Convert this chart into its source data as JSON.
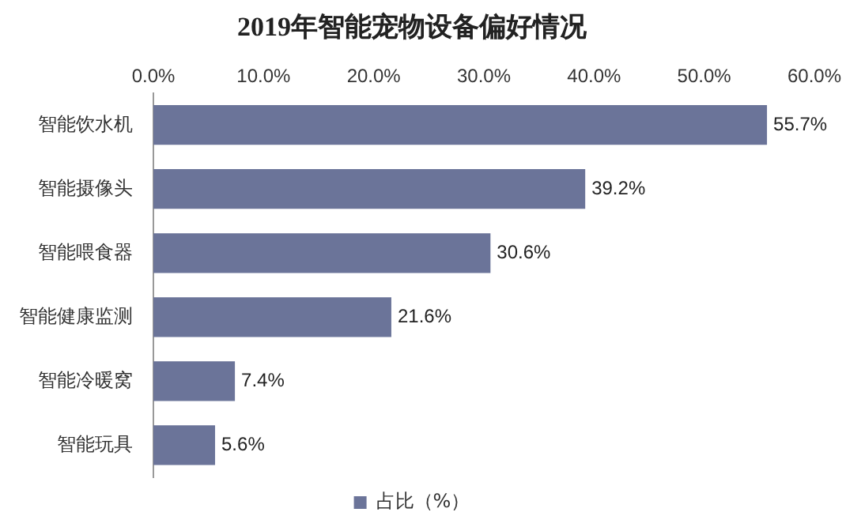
{
  "chart_data": {
    "type": "bar",
    "orientation": "horizontal",
    "title": "2019年智能宠物设备偏好情况",
    "categories": [
      "智能饮水机",
      "智能摄像头",
      "智能喂食器",
      "智能健康监测",
      "智能冷暖窝",
      "智能玩具"
    ],
    "series": [
      {
        "name": "占比（%）",
        "color": "#6b7499",
        "values": [
          55.7,
          39.2,
          30.6,
          21.6,
          7.4,
          5.6
        ],
        "value_labels": [
          "55.7%",
          "39.2%",
          "30.6%",
          "21.6%",
          "7.4%",
          "5.6%"
        ]
      }
    ],
    "xlim": [
      0,
      60
    ],
    "xticks": [
      {
        "value": 0,
        "label": "0.0%"
      },
      {
        "value": 10,
        "label": "10.0%"
      },
      {
        "value": 20,
        "label": "20.0%"
      },
      {
        "value": 30,
        "label": "30.0%"
      },
      {
        "value": 40,
        "label": "40.0%"
      },
      {
        "value": 50,
        "label": "50.0%"
      },
      {
        "value": 60,
        "label": "60.0%"
      }
    ],
    "grid": false,
    "legend": "bottom"
  }
}
